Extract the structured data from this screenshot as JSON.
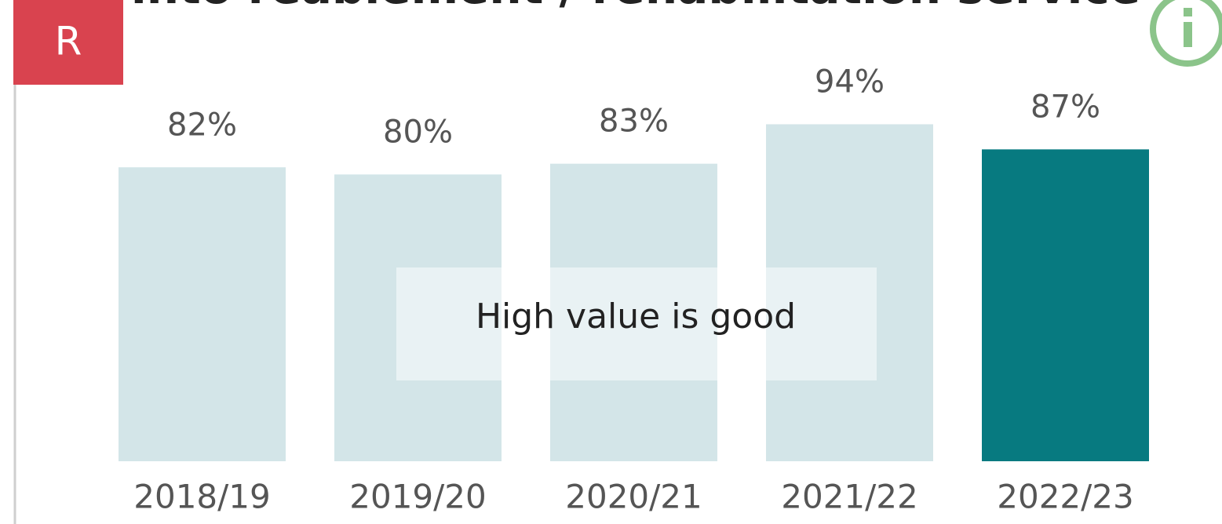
{
  "chart_data": {
    "type": "bar",
    "title": "into reablement / rehabilitation service",
    "badge": "R",
    "annotation": "High value is good",
    "categories": [
      "2018/19",
      "2019/20",
      "2020/21",
      "2021/22",
      "2022/23"
    ],
    "values": [
      82,
      80,
      83,
      94,
      87
    ],
    "value_labels": [
      "82%",
      "80%",
      "83%",
      "94%",
      "87%"
    ],
    "colors": [
      "#d3e5e8",
      "#d3e5e8",
      "#d3e5e8",
      "#d3e5e8",
      "#077a80"
    ],
    "ylim": [
      0,
      100
    ]
  }
}
